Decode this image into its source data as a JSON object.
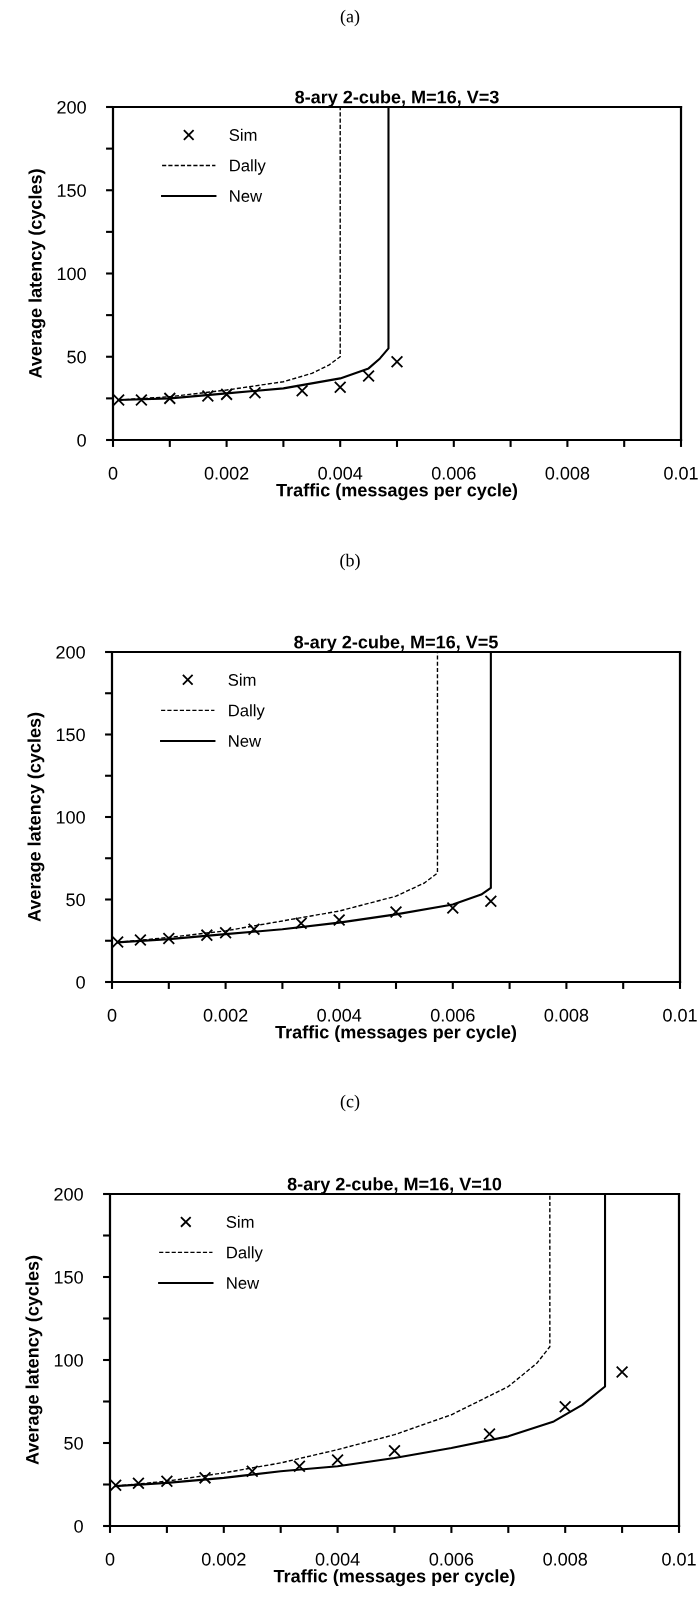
{
  "chart_data": [
    {
      "type": "line",
      "title": "8-ary 2-cube, M=16, V=3",
      "xlabel": "Traffic (messages per cycle)",
      "ylabel": "Average latency (cycles)",
      "annotations": [
        "(a)"
      ],
      "xlim": [
        0,
        0.01
      ],
      "ylim": [
        0,
        200
      ],
      "xticks": [
        0,
        {
          "value": 0.001,
          "label": null
        },
        0.002,
        {
          "value": 0.003,
          "label": null
        },
        0.004,
        {
          "value": 0.005,
          "label": null
        },
        0.006,
        {
          "value": 0.007,
          "label": null
        },
        0.008,
        {
          "value": 0.009,
          "label": null
        },
        0.01
      ],
      "yticks": [
        0,
        {
          "value": 25,
          "label": null
        },
        50,
        {
          "value": 75,
          "label": null
        },
        100,
        {
          "value": 125,
          "label": null
        },
        150,
        {
          "value": 175,
          "label": null
        },
        200
      ],
      "grid": false,
      "legend": "top left",
      "series": [
        {
          "name": "Sim",
          "type": "scatter",
          "marker": "cross",
          "color": "#000000",
          "x": [
            0.0001,
            0.0005,
            0.001,
            0.00167,
            0.002,
            0.0025,
            0.00333,
            0.004,
            0.0045,
            0.005
          ],
          "values": [
            24,
            24,
            25,
            26.4,
            27.4,
            28.4,
            29.6,
            31.7,
            38.5,
            47
          ]
        },
        {
          "name": "Dally",
          "type": "line",
          "line_style": "dashed",
          "color": "#000000",
          "x": [
            0.0001,
            0.001,
            0.002,
            0.003,
            0.0035,
            0.0038,
            0.004,
            0.004
          ],
          "values": [
            24,
            26,
            30,
            35,
            40,
            45,
            50,
            200
          ]
        },
        {
          "name": "New",
          "type": "line",
          "line_style": "solid",
          "color": "#000000",
          "x": [
            0.0001,
            0.001,
            0.002,
            0.003,
            0.004,
            0.0045,
            0.0047,
            0.00485,
            0.00485
          ],
          "values": [
            24,
            25,
            28,
            31,
            37,
            43,
            49,
            55,
            200
          ]
        }
      ]
    },
    {
      "type": "line",
      "title": "8-ary 2-cube, M=16, V=5",
      "xlabel": "Traffic (messages per cycle)",
      "ylabel": "Average latency (cycles)",
      "annotations": [
        "(b)"
      ],
      "xlim": [
        0,
        0.01
      ],
      "ylim": [
        0,
        200
      ],
      "xticks": [
        0,
        {
          "value": 0.001,
          "label": null
        },
        0.002,
        {
          "value": 0.003,
          "label": null
        },
        0.004,
        {
          "value": 0.005,
          "label": null
        },
        0.006,
        {
          "value": 0.007,
          "label": null
        },
        0.008,
        {
          "value": 0.009,
          "label": null
        },
        0.01
      ],
      "yticks": [
        0,
        {
          "value": 25,
          "label": null
        },
        50,
        {
          "value": 75,
          "label": null
        },
        100,
        {
          "value": 125,
          "label": null
        },
        150,
        {
          "value": 175,
          "label": null
        },
        200
      ],
      "grid": false,
      "legend": "top left",
      "series": [
        {
          "name": "Sim",
          "type": "scatter",
          "marker": "cross",
          "color": "#000000",
          "x": [
            0.0001,
            0.0005,
            0.001,
            0.00167,
            0.002,
            0.0025,
            0.00333,
            0.004,
            0.005,
            0.006,
            0.00667
          ],
          "values": [
            24.2,
            25.5,
            26.4,
            28.4,
            29.8,
            32,
            35.6,
            37.6,
            42.4,
            44.8,
            49
          ]
        },
        {
          "name": "Dally",
          "type": "line",
          "line_style": "dashed",
          "color": "#000000",
          "x": [
            0.0001,
            0.001,
            0.002,
            0.003,
            0.004,
            0.005,
            0.0055,
            0.00573,
            0.00573
          ],
          "values": [
            24,
            27,
            31,
            37,
            43,
            52,
            60,
            66,
            200
          ]
        },
        {
          "name": "New",
          "type": "line",
          "line_style": "solid",
          "color": "#000000",
          "x": [
            0.0001,
            0.001,
            0.002,
            0.003,
            0.004,
            0.005,
            0.006,
            0.0065,
            0.00667,
            0.00667
          ],
          "values": [
            24,
            26,
            29,
            32,
            36,
            41,
            47,
            53,
            57,
            200
          ]
        }
      ]
    },
    {
      "type": "line",
      "title": "8-ary 2-cube, M=16, V=10",
      "xlabel": "Traffic (messages per cycle)",
      "ylabel": "Average latency (cycles)",
      "annotations": [
        "(c)"
      ],
      "xlim": [
        0,
        0.01
      ],
      "ylim": [
        0,
        200
      ],
      "xticks": [
        0,
        {
          "value": 0.001,
          "label": null
        },
        0.002,
        {
          "value": 0.003,
          "label": null
        },
        0.004,
        {
          "value": 0.005,
          "label": null
        },
        0.006,
        {
          "value": 0.007,
          "label": null
        },
        0.008,
        {
          "value": 0.009,
          "label": null
        },
        0.01
      ],
      "yticks": [
        0,
        {
          "value": 25,
          "label": null
        },
        50,
        {
          "value": 75,
          "label": null
        },
        100,
        {
          "value": 125,
          "label": null
        },
        150,
        {
          "value": 175,
          "label": null
        },
        200
      ],
      "grid": false,
      "legend": "top left",
      "series": [
        {
          "name": "Sim",
          "type": "scatter",
          "marker": "cross",
          "color": "#000000",
          "x": [
            0.0001,
            0.0005,
            0.001,
            0.00167,
            0.0025,
            0.00333,
            0.004,
            0.005,
            0.00667,
            0.008,
            0.009
          ],
          "values": [
            24.6,
            25.8,
            27,
            29,
            33,
            36,
            39.8,
            45.3,
            55.4,
            71.8,
            92.8
          ]
        },
        {
          "name": "Dally",
          "type": "line",
          "line_style": "dashed",
          "color": "#000000",
          "x": [
            0.0001,
            0.001,
            0.002,
            0.003,
            0.004,
            0.005,
            0.006,
            0.007,
            0.0075,
            0.00773,
            0.00773
          ],
          "values": [
            24,
            27,
            32,
            38,
            46,
            55,
            67,
            84,
            98,
            108,
            200
          ]
        },
        {
          "name": "New",
          "type": "line",
          "line_style": "solid",
          "color": "#000000",
          "x": [
            0.0001,
            0.001,
            0.002,
            0.003,
            0.004,
            0.005,
            0.006,
            0.007,
            0.0078,
            0.0083,
            0.0087,
            0.0087
          ],
          "values": [
            24,
            26,
            29,
            33,
            36,
            41,
            47,
            54,
            63,
            73,
            84,
            200
          ]
        }
      ]
    }
  ]
}
